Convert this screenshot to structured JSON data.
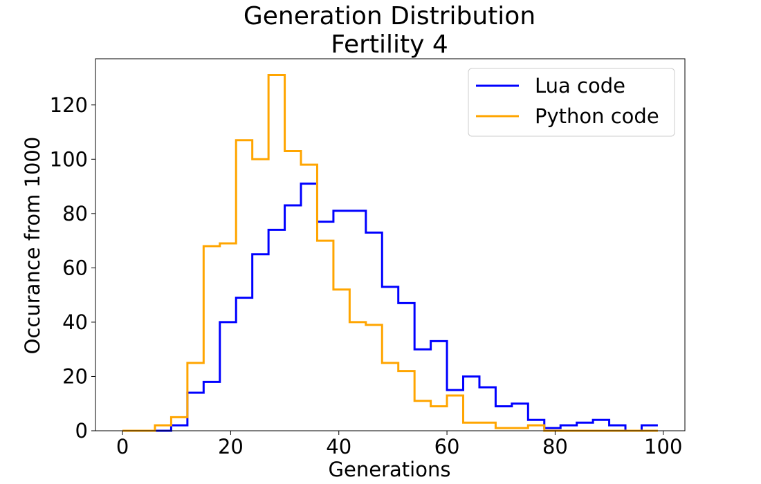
{
  "chart_data": {
    "type": "line",
    "drawstyle": "step-histogram",
    "title": "Generation Distribution",
    "subtitle": "Fertility 4",
    "xlabel": "Generations",
    "ylabel": "Occurance from 1000",
    "xlim": [
      -5,
      104
    ],
    "ylim": [
      0,
      137
    ],
    "xticks": [
      0,
      20,
      40,
      60,
      80,
      100
    ],
    "yticks": [
      0,
      20,
      40,
      60,
      80,
      100,
      120
    ],
    "grid": false,
    "legend_position": "top-right",
    "bin_edges": [
      0,
      3,
      6,
      9,
      12,
      15,
      18,
      21,
      24,
      27,
      30,
      33,
      36,
      39,
      42,
      45,
      48,
      51,
      54,
      57,
      60,
      63,
      66,
      69,
      72,
      75,
      78,
      81,
      84,
      87,
      90,
      93,
      96,
      99
    ],
    "series": [
      {
        "name": "Lua code",
        "color": "#0000ff",
        "values": [
          0,
          0,
          0,
          2,
          14,
          18,
          40,
          49,
          65,
          74,
          83,
          91,
          77,
          81,
          81,
          73,
          53,
          47,
          30,
          33,
          15,
          20,
          16,
          9,
          10,
          4,
          1,
          2,
          3,
          4,
          2,
          0,
          2
        ]
      },
      {
        "name": "Python code",
        "color": "#ffa500",
        "values": [
          0,
          0,
          2,
          5,
          25,
          68,
          69,
          107,
          100,
          131,
          103,
          98,
          70,
          52,
          40,
          39,
          25,
          22,
          11,
          9,
          13,
          3,
          3,
          1,
          1,
          2,
          0,
          0,
          0,
          0,
          0,
          0,
          0
        ]
      }
    ]
  }
}
